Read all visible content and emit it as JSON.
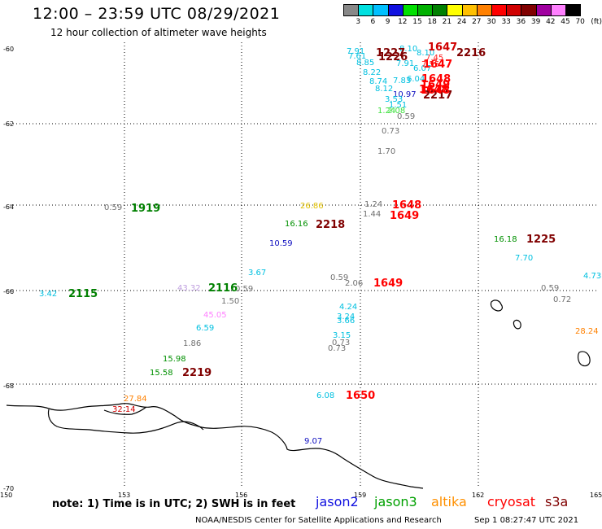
{
  "title": "12:00 – 23:59 UTC 08/29/2021",
  "subtitle": "12 hour collection of altimeter wave heights",
  "colorbar": {
    "unit": "(ft)",
    "labels": [
      "3",
      "6",
      "9",
      "12",
      "15",
      "18",
      "21",
      "24",
      "27",
      "30",
      "33",
      "36",
      "39",
      "42",
      "45",
      "70"
    ],
    "colors": [
      "#888888",
      "#00e0e0",
      "#00c0ff",
      "#1010e0",
      "#00e000",
      "#00b000",
      "#008000",
      "#ffff00",
      "#ffc000",
      "#ff8000",
      "#ff0000",
      "#d00000",
      "#800000",
      "#a000a0",
      "#ff80ff",
      "#000000"
    ]
  },
  "map": {
    "lon_labels": [
      "150",
      "153",
      "156",
      "159",
      "162",
      "165"
    ],
    "lat_labels": [
      "-60",
      "-62",
      "-64",
      "-66",
      "-68",
      "-70"
    ]
  },
  "observations": [
    {
      "text": "7.91",
      "color": "#00c0e0"
    },
    {
      "text": "7.61",
      "color": "#00c0e0"
    },
    {
      "text": "8.85",
      "color": "#00c0e0"
    },
    {
      "text": "8.22",
      "color": "#00c0e0"
    },
    {
      "text": "8.74",
      "color": "#00c0e0"
    },
    {
      "text": "8.12",
      "color": "#00c0e0"
    },
    {
      "text": "7.83",
      "color": "#00c0e0"
    },
    {
      "text": "7.91",
      "color": "#00c0e0"
    },
    {
      "text": "6.07",
      "color": "#00c0e0"
    },
    {
      "text": "6.04",
      "color": "#00c0e0"
    },
    {
      "text": "10.97",
      "color": "#1010c0"
    },
    {
      "text": "3.53",
      "color": "#00c0e0"
    },
    {
      "text": "1.51",
      "color": "#00c0e0"
    },
    {
      "text": "8.10",
      "color": "#00c0e0"
    },
    {
      "text": "7.45",
      "color": "#ff2020"
    },
    {
      "text": "7.55",
      "color": "#ff2020"
    },
    {
      "text": "0.59",
      "color": "#707070"
    },
    {
      "text": "0.73",
      "color": "#707070"
    },
    {
      "text": "1.70",
      "color": "#707070"
    },
    {
      "text": "1.24",
      "color": "#707070"
    },
    {
      "text": "1.44",
      "color": "#707070"
    },
    {
      "text": "26.86",
      "color": "#e0c000"
    },
    {
      "text": "16.16",
      "color": "#009000"
    },
    {
      "text": "10.59",
      "color": "#1010c0"
    },
    {
      "text": "0.59",
      "color": "#707070"
    },
    {
      "text": "3.67",
      "color": "#00c0e0"
    },
    {
      "text": "3.42",
      "color": "#00c0e0"
    },
    {
      "text": "43.32",
      "color": "#c0a0e0"
    },
    {
      "text": "0.59",
      "color": "#707070"
    },
    {
      "text": "1.50",
      "color": "#707070"
    },
    {
      "text": "45.05",
      "color": "#ff80ff"
    },
    {
      "text": "6.59",
      "color": "#00c0e0"
    },
    {
      "text": "1.86",
      "color": "#707070"
    },
    {
      "text": "15.98",
      "color": "#009000"
    },
    {
      "text": "15.58",
      "color": "#009000"
    },
    {
      "text": "27.84",
      "color": "#ff8000"
    },
    {
      "text": "32.14",
      "color": "#d00000"
    },
    {
      "text": "0.59",
      "color": "#707070"
    },
    {
      "text": "2.06",
      "color": "#707070"
    },
    {
      "text": "4.24",
      "color": "#00c0e0"
    },
    {
      "text": "3.24",
      "color": "#00c0e0"
    },
    {
      "text": "3.66",
      "color": "#00c0e0"
    },
    {
      "text": "3.15",
      "color": "#00c0e0"
    },
    {
      "text": "0.73",
      "color": "#707070"
    },
    {
      "text": "0.73",
      "color": "#707070"
    },
    {
      "text": "6.08",
      "color": "#00c0e0"
    },
    {
      "text": "9.07",
      "color": "#1010c0"
    },
    {
      "text": "16.18",
      "color": "#009000"
    },
    {
      "text": "7.70",
      "color": "#00c0e0"
    },
    {
      "text": "0.59",
      "color": "#707070"
    },
    {
      "text": "0.72",
      "color": "#707070"
    },
    {
      "text": "4.73",
      "color": "#00c0e0"
    },
    {
      "text": "28.24",
      "color": "#ff8000"
    },
    {
      "text": "8.10",
      "color": "#00c0e0"
    },
    {
      "text": "1.24",
      "color": "#40e040"
    },
    {
      "text": "2.08",
      "color": "#40e040"
    }
  ],
  "times": [
    {
      "text": "1647",
      "color": "#d00000"
    },
    {
      "text": "1227",
      "color": "#800000"
    },
    {
      "text": "1226",
      "color": "#800000"
    },
    {
      "text": "2216",
      "color": "#800000"
    },
    {
      "text": "1647",
      "color": "#ff0000"
    },
    {
      "text": "1648",
      "color": "#ff0000"
    },
    {
      "text": "1649",
      "color": "#ff0000"
    },
    {
      "text": "1648",
      "color": "#ff0000"
    },
    {
      "text": "2217",
      "color": "#800000"
    },
    {
      "text": "1648",
      "color": "#ff0000"
    },
    {
      "text": "1919",
      "color": "#008000"
    },
    {
      "text": "1648",
      "color": "#ff0000"
    },
    {
      "text": "1649",
      "color": "#ff0000"
    },
    {
      "text": "2218",
      "color": "#800000"
    },
    {
      "text": "1225",
      "color": "#800000"
    },
    {
      "text": "2115",
      "color": "#008000"
    },
    {
      "text": "2116",
      "color": "#008000"
    },
    {
      "text": "1649",
      "color": "#ff0000"
    },
    {
      "text": "2219",
      "color": "#800000"
    },
    {
      "text": "1650",
      "color": "#ff0000"
    }
  ],
  "note": "note:  1) Time is in UTC;  2) SWH is in feet",
  "satellites": [
    {
      "name": "jason2",
      "color": "#1010e0"
    },
    {
      "name": "jason3",
      "color": "#00a000"
    },
    {
      "name": "altika",
      "color": "#ff9000"
    },
    {
      "name": "cryosat",
      "color": "#ff0000"
    },
    {
      "name": "s3a",
      "color": "#800000"
    }
  ],
  "credit": "NOAA/NESDIS Center for Satellite Applications and Research",
  "timestamp": "Sep  1 08:27:47 UTC 2021"
}
